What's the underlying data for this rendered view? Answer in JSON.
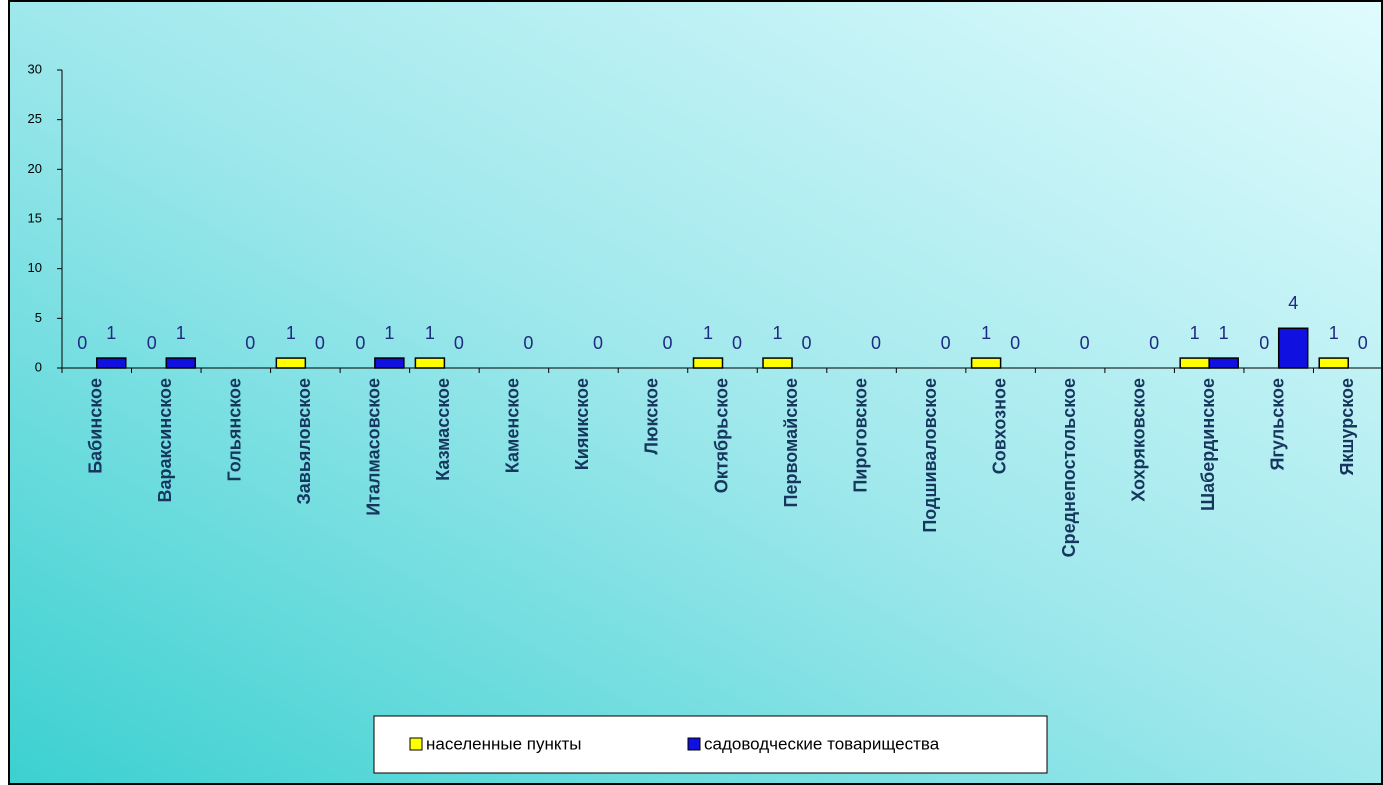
{
  "chart_data": {
    "type": "bar",
    "categories": [
      "Бабинское",
      "Вараксинское",
      "Гольянское",
      "Завьяловское",
      "Италмасовское",
      "Казмасское",
      "Каменское",
      "Кияикское",
      "Люкское",
      "Октябрьское",
      "Первомайское",
      "Пироговское",
      "Подшиваловское",
      "Совхозное",
      "Среднепостольское",
      "Хохряковское",
      "Шабердинское",
      "Ягульское",
      "Якшурское"
    ],
    "series": [
      {
        "name": "населенные пункты",
        "color": "#ffff00",
        "values": [
          0,
          0,
          null,
          1,
          0,
          1,
          null,
          null,
          null,
          1,
          1,
          null,
          null,
          1,
          null,
          null,
          1,
          0,
          1
        ]
      },
      {
        "name": "садоводческие товарищества",
        "color": "#1010e0",
        "values": [
          1,
          1,
          0,
          0,
          1,
          0,
          0,
          0,
          0,
          0,
          0,
          0,
          0,
          0,
          0,
          0,
          1,
          4,
          0
        ]
      }
    ],
    "ylim": [
      0,
      30
    ],
    "yticks": [
      0,
      5,
      10,
      15,
      20,
      25,
      30
    ],
    "legend": "bottom"
  }
}
